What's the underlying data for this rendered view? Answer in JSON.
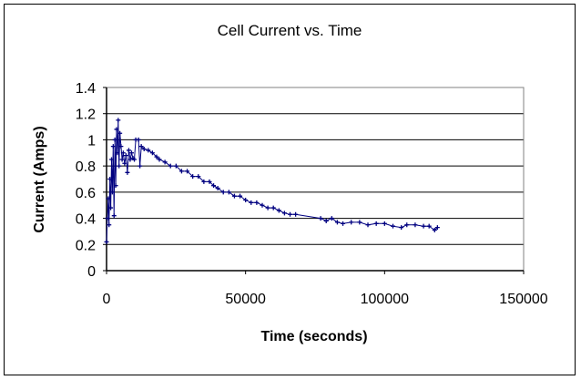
{
  "chart_data": {
    "type": "line",
    "title": "Cell Current vs. Time",
    "xlabel": "Time (seconds)",
    "ylabel": "Current (Amps)",
    "xlim": [
      0,
      150000
    ],
    "ylim": [
      0,
      1.4
    ],
    "xticks": [
      "0",
      "50000",
      "100000",
      "150000"
    ],
    "xtick_values": [
      0,
      50000,
      100000,
      150000
    ],
    "yticks": [
      "0",
      "0.2",
      "0.4",
      "0.6",
      "0.8",
      "1",
      "1.2",
      "1.4"
    ],
    "ytick_values": [
      0,
      0.2,
      0.4,
      0.6,
      0.8,
      1,
      1.2,
      1.4
    ],
    "grid": "horizontal",
    "legend": "none",
    "series": [
      {
        "name": "Current",
        "color": "#000080",
        "marker": "plus",
        "points": [
          [
            0,
            0.22
          ],
          [
            300,
            0.4
          ],
          [
            600,
            0.55
          ],
          [
            900,
            0.35
          ],
          [
            1200,
            0.7
          ],
          [
            1500,
            0.48
          ],
          [
            1800,
            0.85
          ],
          [
            2100,
            0.6
          ],
          [
            2400,
            0.95
          ],
          [
            2700,
            0.42
          ],
          [
            3000,
            1.0
          ],
          [
            3300,
            0.65
          ],
          [
            3600,
            1.08
          ],
          [
            3900,
            0.9
          ],
          [
            4200,
            1.15
          ],
          [
            4500,
            0.8
          ],
          [
            4800,
            1.05
          ],
          [
            5200,
            0.95
          ],
          [
            5600,
            0.85
          ],
          [
            6000,
            0.9
          ],
          [
            6500,
            0.82
          ],
          [
            7000,
            0.88
          ],
          [
            7500,
            0.75
          ],
          [
            8000,
            0.92
          ],
          [
            8500,
            0.85
          ],
          [
            9000,
            0.9
          ],
          [
            9500,
            0.86
          ],
          [
            10000,
            0.85
          ],
          [
            10500,
            1.0
          ],
          [
            11500,
            1.0
          ],
          [
            12000,
            0.8
          ],
          [
            12500,
            0.95
          ],
          [
            13500,
            0.93
          ],
          [
            15000,
            0.92
          ],
          [
            16500,
            0.9
          ],
          [
            18000,
            0.87
          ],
          [
            19000,
            0.85
          ],
          [
            21000,
            0.83
          ],
          [
            23000,
            0.8
          ],
          [
            25000,
            0.8
          ],
          [
            27000,
            0.76
          ],
          [
            29000,
            0.76
          ],
          [
            31000,
            0.72
          ],
          [
            33000,
            0.72
          ],
          [
            35000,
            0.68
          ],
          [
            37000,
            0.68
          ],
          [
            38500,
            0.65
          ],
          [
            40000,
            0.63
          ],
          [
            42000,
            0.6
          ],
          [
            44000,
            0.6
          ],
          [
            46000,
            0.57
          ],
          [
            48000,
            0.57
          ],
          [
            50000,
            0.54
          ],
          [
            52000,
            0.52
          ],
          [
            54000,
            0.52
          ],
          [
            56000,
            0.5
          ],
          [
            58000,
            0.48
          ],
          [
            60000,
            0.48
          ],
          [
            62000,
            0.46
          ],
          [
            64000,
            0.44
          ],
          [
            66000,
            0.43
          ],
          [
            68000,
            0.43
          ],
          [
            77000,
            0.4
          ],
          [
            79000,
            0.38
          ],
          [
            81000,
            0.4
          ],
          [
            83000,
            0.37
          ],
          [
            85000,
            0.36
          ],
          [
            88000,
            0.37
          ],
          [
            91000,
            0.37
          ],
          [
            94000,
            0.35
          ],
          [
            97000,
            0.36
          ],
          [
            100000,
            0.36
          ],
          [
            103000,
            0.34
          ],
          [
            106000,
            0.33
          ],
          [
            108000,
            0.35
          ],
          [
            111000,
            0.35
          ],
          [
            114000,
            0.34
          ],
          [
            116000,
            0.34
          ],
          [
            118000,
            0.31
          ],
          [
            119000,
            0.33
          ]
        ]
      }
    ]
  }
}
